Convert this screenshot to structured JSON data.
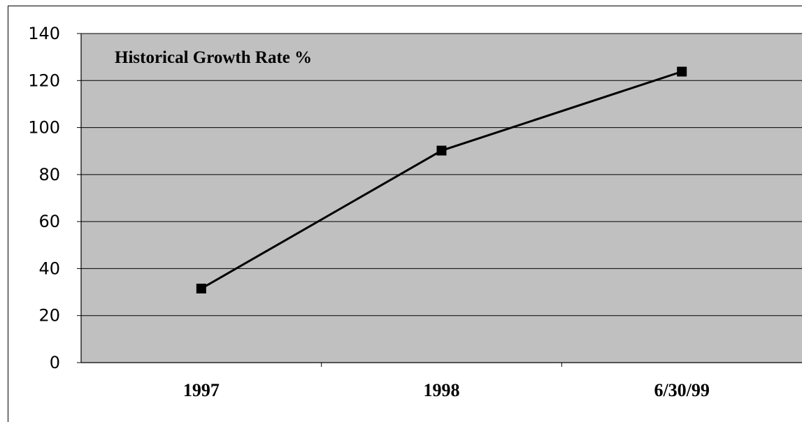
{
  "chart_data": {
    "type": "line",
    "title": "Historical Growth Rate %",
    "categories": [
      "1997",
      "1998",
      "6/30/99"
    ],
    "series": [
      {
        "values": [
          31.5,
          90.2,
          123.8
        ]
      }
    ],
    "ylim": [
      0,
      140
    ],
    "yticks": [
      0,
      20,
      40,
      60,
      80,
      100,
      120,
      140
    ],
    "grid": true,
    "colors": {
      "plot_background": "#c0c0c0",
      "line": "#000000",
      "marker": "#000000",
      "gridline": "#000000"
    }
  }
}
